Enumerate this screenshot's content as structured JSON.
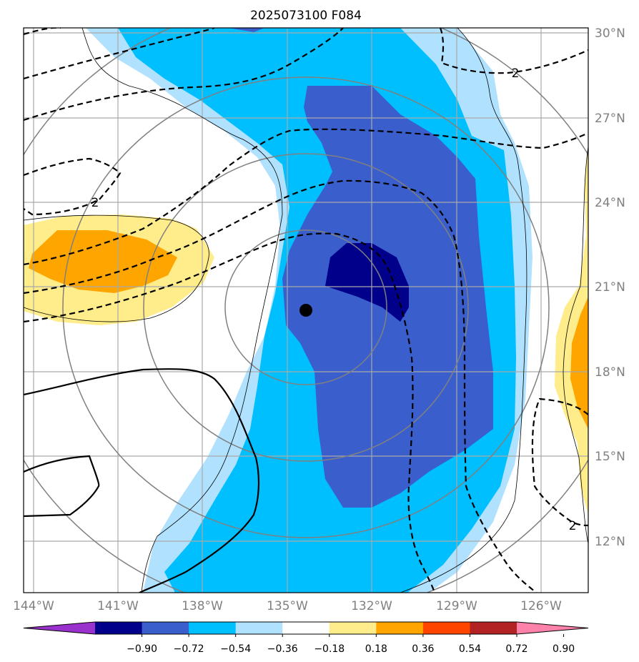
{
  "title": "2025073100 F084",
  "lat_labels": [
    "30°N",
    "27°N",
    "24°N",
    "21°N",
    "18°N",
    "15°N",
    "12°N"
  ],
  "lon_labels": [
    "144°W",
    "141°W",
    "138°W",
    "135°W",
    "132°W",
    "129°W",
    "126°W"
  ],
  "colorbar": {
    "ticks": [
      "−0.90",
      "−0.72",
      "−0.54",
      "−0.36",
      "−0.18",
      "0.18",
      "0.36",
      "0.54",
      "0.72",
      "0.90"
    ],
    "colors": [
      "#9932cc",
      "#00008b",
      "#3a5fcd",
      "#00bfff",
      "#b0e2ff",
      "#ffffff",
      "#ffec8b",
      "#ffa500",
      "#ff4500",
      "#b22222",
      "#ff82ab"
    ]
  },
  "contour_labels": [
    "2",
    "2",
    "2"
  ],
  "colors": {
    "navy": "#00008b",
    "royal": "#3a5fcd",
    "deepsky": "#00bfff",
    "lightsky": "#b0e2ff",
    "lightyellow": "#ffec8b",
    "orange": "#ffa500",
    "grid": "#a9a9a9",
    "ring": "#808080"
  },
  "center_marker": "black-dot"
}
